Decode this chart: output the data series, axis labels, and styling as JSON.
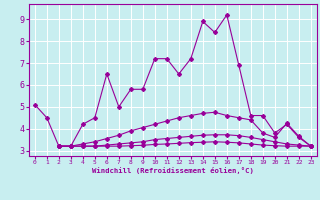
{
  "xlabel": "Windchill (Refroidissement éolien,°C)",
  "bg_color": "#c8eef0",
  "line_color": "#990099",
  "grid_color": "#ffffff",
  "x_ticks": [
    0,
    1,
    2,
    3,
    4,
    5,
    6,
    7,
    8,
    9,
    10,
    11,
    12,
    13,
    14,
    15,
    16,
    17,
    18,
    19,
    20,
    21,
    22,
    23
  ],
  "y_ticks": [
    3,
    4,
    5,
    6,
    7,
    8,
    9
  ],
  "ylim": [
    2.75,
    9.7
  ],
  "xlim": [
    -0.5,
    23.5
  ],
  "line1_x": [
    0,
    1,
    2,
    3,
    4,
    5,
    6,
    7,
    8,
    9,
    10,
    11,
    12,
    13,
    14,
    15,
    16,
    17,
    18,
    19,
    20,
    21,
    22,
    23
  ],
  "line1_y": [
    5.1,
    4.5,
    3.2,
    3.2,
    4.2,
    4.5,
    6.5,
    5.0,
    5.8,
    5.8,
    7.2,
    7.2,
    6.5,
    7.2,
    8.9,
    8.4,
    9.2,
    6.9,
    4.6,
    4.6,
    3.8,
    4.2,
    3.6,
    3.2
  ],
  "line2_x": [
    2,
    3,
    4,
    5,
    6,
    7,
    8,
    9,
    10,
    11,
    12,
    13,
    14,
    15,
    16,
    17,
    18,
    19,
    20,
    21,
    22,
    23
  ],
  "line2_y": [
    3.2,
    3.2,
    3.3,
    3.4,
    3.55,
    3.7,
    3.9,
    4.05,
    4.2,
    4.35,
    4.5,
    4.6,
    4.7,
    4.75,
    4.6,
    4.5,
    4.4,
    3.8,
    3.6,
    4.25,
    3.65,
    3.2
  ],
  "line3_x": [
    2,
    3,
    4,
    5,
    6,
    7,
    8,
    9,
    10,
    11,
    12,
    13,
    14,
    15,
    16,
    17,
    18,
    19,
    20,
    21,
    22,
    23
  ],
  "line3_y": [
    3.2,
    3.2,
    3.2,
    3.2,
    3.25,
    3.3,
    3.35,
    3.4,
    3.5,
    3.55,
    3.6,
    3.65,
    3.7,
    3.72,
    3.72,
    3.68,
    3.6,
    3.5,
    3.4,
    3.3,
    3.25,
    3.2
  ],
  "line4_x": [
    2,
    3,
    4,
    5,
    6,
    7,
    8,
    9,
    10,
    11,
    12,
    13,
    14,
    15,
    16,
    17,
    18,
    19,
    20,
    21,
    22,
    23
  ],
  "line4_y": [
    3.2,
    3.2,
    3.2,
    3.2,
    3.2,
    3.2,
    3.22,
    3.24,
    3.28,
    3.3,
    3.33,
    3.36,
    3.38,
    3.4,
    3.38,
    3.35,
    3.3,
    3.25,
    3.22,
    3.2,
    3.2,
    3.2
  ]
}
